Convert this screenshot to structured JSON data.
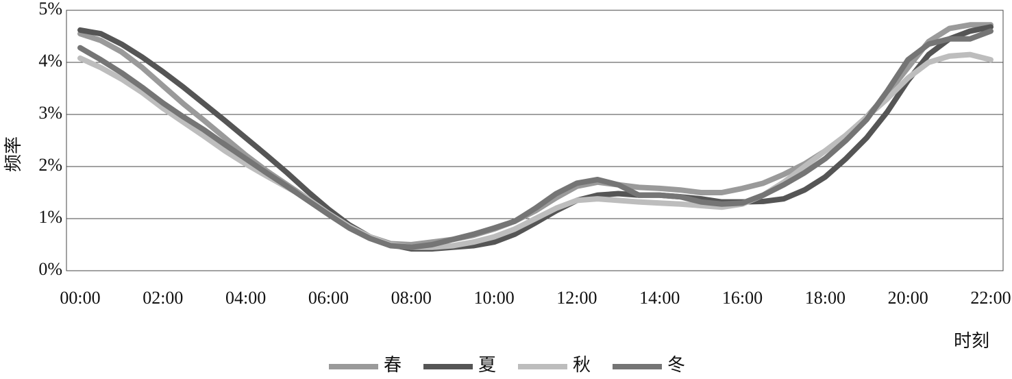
{
  "chart_data": {
    "type": "line",
    "y_label": "频率",
    "x_label": "时刻",
    "categories": [
      "00:00",
      null,
      null,
      null,
      "02:00",
      null,
      null,
      null,
      "04:00",
      null,
      null,
      null,
      "06:00",
      null,
      null,
      null,
      "08:00",
      null,
      null,
      null,
      "10:00",
      null,
      null,
      null,
      "12:00",
      null,
      null,
      null,
      "14:00",
      null,
      null,
      null,
      "16:00",
      null,
      null,
      null,
      "18:00",
      null,
      null,
      null,
      "20:00",
      null,
      null,
      null,
      "22:00"
    ],
    "ylim": [
      0,
      5
    ],
    "yticks": [
      {
        "value": 0,
        "label": "0%"
      },
      {
        "value": 1,
        "label": "1%"
      },
      {
        "value": 2,
        "label": "2%"
      },
      {
        "value": 3,
        "label": "3%"
      },
      {
        "value": 4,
        "label": "4%"
      },
      {
        "value": 5,
        "label": "5%"
      }
    ],
    "grid": true,
    "legend": "bottom",
    "series": [
      {
        "name": "春",
        "color": "#9a9a9a",
        "values": [
          4.55,
          4.42,
          4.2,
          3.9,
          3.55,
          3.2,
          2.88,
          2.55,
          2.22,
          1.92,
          1.65,
          1.38,
          1.1,
          0.85,
          0.65,
          0.52,
          0.5,
          0.55,
          0.6,
          0.68,
          0.8,
          0.95,
          1.15,
          1.4,
          1.62,
          1.7,
          1.65,
          1.6,
          1.58,
          1.55,
          1.5,
          1.5,
          1.58,
          1.68,
          1.85,
          2.05,
          2.3,
          2.6,
          2.95,
          3.4,
          3.9,
          4.4,
          4.65,
          4.72,
          4.72
        ]
      },
      {
        "name": "夏",
        "color": "#555555",
        "values": [
          4.62,
          4.55,
          4.35,
          4.1,
          3.82,
          3.52,
          3.2,
          2.88,
          2.55,
          2.22,
          1.88,
          1.52,
          1.18,
          0.88,
          0.65,
          0.5,
          0.42,
          0.42,
          0.45,
          0.48,
          0.55,
          0.7,
          0.92,
          1.15,
          1.35,
          1.45,
          1.48,
          1.45,
          1.45,
          1.42,
          1.38,
          1.32,
          1.32,
          1.33,
          1.38,
          1.55,
          1.8,
          2.15,
          2.55,
          3.05,
          3.65,
          4.15,
          4.45,
          4.6,
          4.68
        ]
      },
      {
        "name": "秋",
        "color": "#bdbdbd",
        "values": [
          4.08,
          3.9,
          3.68,
          3.42,
          3.12,
          2.85,
          2.58,
          2.3,
          2.05,
          1.82,
          1.6,
          1.38,
          1.1,
          0.85,
          0.65,
          0.5,
          0.45,
          0.45,
          0.48,
          0.55,
          0.65,
          0.8,
          1.0,
          1.2,
          1.35,
          1.38,
          1.35,
          1.32,
          1.3,
          1.28,
          1.25,
          1.22,
          1.28,
          1.45,
          1.7,
          2.0,
          2.3,
          2.6,
          2.95,
          3.3,
          3.7,
          4.0,
          4.12,
          4.15,
          4.05
        ]
      },
      {
        "name": "冬",
        "color": "#757575",
        "values": [
          4.28,
          4.05,
          3.8,
          3.52,
          3.22,
          2.95,
          2.7,
          2.42,
          2.15,
          1.88,
          1.62,
          1.35,
          1.08,
          0.82,
          0.62,
          0.48,
          0.45,
          0.5,
          0.6,
          0.7,
          0.82,
          0.95,
          1.2,
          1.48,
          1.68,
          1.75,
          1.65,
          1.45,
          1.45,
          1.42,
          1.32,
          1.28,
          1.3,
          1.45,
          1.65,
          1.88,
          2.15,
          2.5,
          2.9,
          3.45,
          4.05,
          4.35,
          4.45,
          4.45,
          4.6
        ]
      }
    ]
  }
}
